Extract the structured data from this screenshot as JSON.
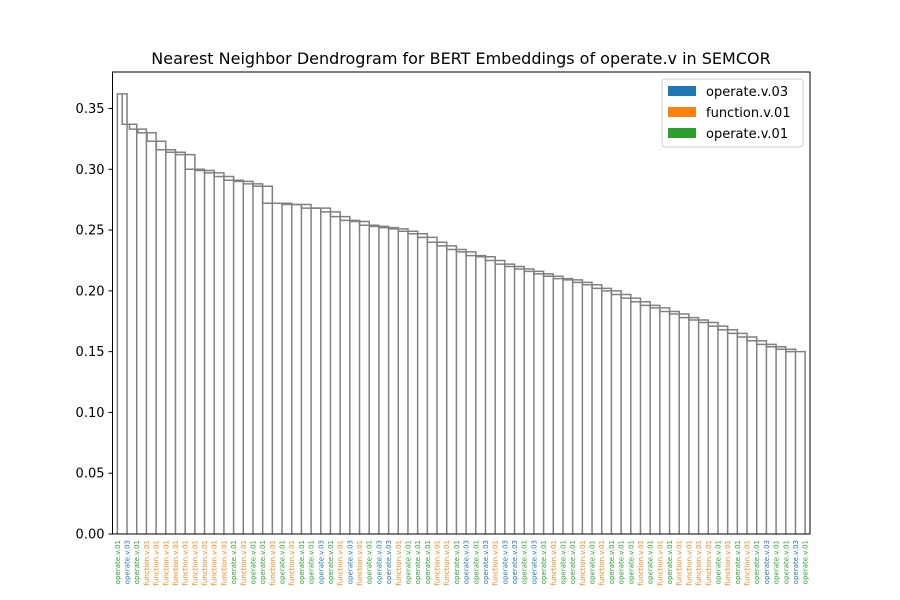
{
  "chart_data": {
    "type": "dendrogram",
    "title": "Nearest Neighbor Dendrogram for BERT Embeddings of operate.v in SEMCOR",
    "xlabel": "",
    "ylabel": "",
    "ylim": [
      0,
      0.38
    ],
    "yticks": [
      "0.00",
      "0.05",
      "0.10",
      "0.15",
      "0.20",
      "0.25",
      "0.30",
      "0.35"
    ],
    "grid": false,
    "legend_position": "top-right",
    "legend": [
      {
        "label": "operate.v.03",
        "color": "#1f77b4"
      },
      {
        "label": "function.v.01",
        "color": "#ff7f0e"
      },
      {
        "label": "operate.v.01",
        "color": "#2ca02c"
      }
    ],
    "link_color": "#808080",
    "sense_colors": {
      "operate.v.03": "#1f77b4",
      "function.v.01": "#ff7f0e",
      "operate.v.01": "#2ca02c"
    },
    "leaves": [
      "operate.v.01",
      "operate.v.03",
      "operate.v.01",
      "function.v.01",
      "function.v.01",
      "function.v.01",
      "function.v.01",
      "function.v.01",
      "function.v.01",
      "function.v.01",
      "function.v.01",
      "function.v.01",
      "operate.v.01",
      "function.v.01",
      "operate.v.01",
      "operate.v.01",
      "function.v.01",
      "operate.v.01",
      "function.v.01",
      "operate.v.01",
      "operate.v.01",
      "operate.v.03",
      "operate.v.01",
      "function.v.01",
      "operate.v.03",
      "function.v.01",
      "operate.v.01",
      "operate.v.03",
      "operate.v.03",
      "function.v.01",
      "operate.v.01",
      "operate.v.01",
      "operate.v.01",
      "function.v.01",
      "function.v.01",
      "operate.v.01",
      "operate.v.03",
      "operate.v.01",
      "operate.v.03",
      "function.v.01",
      "operate.v.03",
      "operate.v.03",
      "operate.v.01",
      "operate.v.03",
      "operate.v.01",
      "function.v.01",
      "operate.v.01",
      "operate.v.01",
      "function.v.01",
      "operate.v.01",
      "function.v.01",
      "operate.v.01",
      "operate.v.01",
      "operate.v.01",
      "function.v.01",
      "operate.v.01",
      "function.v.01",
      "operate.v.01",
      "function.v.01",
      "function.v.01",
      "function.v.01",
      "function.v.01",
      "operate.v.01",
      "function.v.01",
      "operate.v.01",
      "function.v.01",
      "operate.v.01",
      "operate.v.03",
      "operate.v.01",
      "operate.v.01",
      "operate.v.03",
      "operate.v.01"
    ],
    "merges": [
      {
        "a": "L1",
        "b": "L2",
        "h": 0.362
      },
      {
        "a": "L3",
        "b": "M1",
        "h": 0.337
      },
      {
        "a": "L4",
        "b": "M2",
        "h": 0.333
      },
      {
        "a": "L5",
        "b": "M3",
        "h": 0.33
      },
      {
        "a": "L6",
        "b": "M4",
        "h": 0.323
      },
      {
        "a": "L7",
        "b": "M5",
        "h": 0.316
      },
      {
        "a": "L8",
        "b": "M6",
        "h": 0.314
      },
      {
        "a": "L9",
        "b": "M7",
        "h": 0.312
      },
      {
        "a": "L10",
        "b": "M8",
        "h": 0.3
      },
      {
        "a": "L11",
        "b": "M9",
        "h": 0.299
      },
      {
        "a": "L12",
        "b": "M10",
        "h": 0.297
      },
      {
        "a": "L13",
        "b": "M11",
        "h": 0.294
      },
      {
        "a": "L14",
        "b": "M12",
        "h": 0.291
      },
      {
        "a": "L15",
        "b": "M13",
        "h": 0.29
      },
      {
        "a": "L16",
        "b": "M14",
        "h": 0.288
      },
      {
        "a": "L17",
        "b": "M15",
        "h": 0.286
      },
      {
        "a": "L18",
        "b": "M16",
        "h": 0.272
      },
      {
        "a": "L19",
        "b": "M17",
        "h": 0.272
      },
      {
        "a": "L20",
        "b": "M18",
        "h": 0.271
      },
      {
        "a": "L21",
        "b": "M19",
        "h": 0.271
      },
      {
        "a": "L22",
        "b": "M20",
        "h": 0.268
      },
      {
        "a": "L23",
        "b": "M21",
        "h": 0.268
      },
      {
        "a": "L24",
        "b": "M22",
        "h": 0.265
      },
      {
        "a": "L25",
        "b": "M23",
        "h": 0.261
      },
      {
        "a": "L26",
        "b": "M24",
        "h": 0.258
      },
      {
        "a": "L27",
        "b": "M25",
        "h": 0.257
      },
      {
        "a": "L28",
        "b": "M26",
        "h": 0.254
      },
      {
        "a": "L29",
        "b": "M27",
        "h": 0.253
      },
      {
        "a": "L30",
        "b": "M28",
        "h": 0.252
      },
      {
        "a": "L31",
        "b": "M29",
        "h": 0.251
      },
      {
        "a": "L32",
        "b": "M30",
        "h": 0.249
      },
      {
        "a": "L33",
        "b": "M31",
        "h": 0.247
      },
      {
        "a": "L34",
        "b": "M32",
        "h": 0.244
      },
      {
        "a": "L35",
        "b": "M33",
        "h": 0.24
      },
      {
        "a": "L36",
        "b": "M34",
        "h": 0.237
      },
      {
        "a": "L37",
        "b": "M35",
        "h": 0.234
      },
      {
        "a": "L38",
        "b": "M36",
        "h": 0.232
      },
      {
        "a": "L39",
        "b": "M37",
        "h": 0.229
      },
      {
        "a": "L40",
        "b": "M38",
        "h": 0.228
      },
      {
        "a": "L41",
        "b": "M39",
        "h": 0.225
      },
      {
        "a": "L42",
        "b": "M40",
        "h": 0.222
      },
      {
        "a": "L43",
        "b": "M41",
        "h": 0.22
      },
      {
        "a": "L44",
        "b": "M42",
        "h": 0.218
      },
      {
        "a": "L45",
        "b": "M43",
        "h": 0.216
      },
      {
        "a": "L46",
        "b": "M44",
        "h": 0.214
      },
      {
        "a": "L47",
        "b": "M45",
        "h": 0.212
      },
      {
        "a": "L48",
        "b": "M46",
        "h": 0.21
      },
      {
        "a": "L49",
        "b": "M47",
        "h": 0.209
      },
      {
        "a": "L50",
        "b": "M48",
        "h": 0.207
      },
      {
        "a": "L51",
        "b": "M49",
        "h": 0.205
      },
      {
        "a": "L52",
        "b": "M50",
        "h": 0.202
      },
      {
        "a": "L53",
        "b": "M51",
        "h": 0.2
      },
      {
        "a": "L54",
        "b": "M52",
        "h": 0.197
      },
      {
        "a": "L55",
        "b": "M53",
        "h": 0.194
      },
      {
        "a": "L56",
        "b": "M54",
        "h": 0.191
      },
      {
        "a": "L57",
        "b": "M55",
        "h": 0.188
      },
      {
        "a": "L58",
        "b": "M56",
        "h": 0.186
      },
      {
        "a": "L59",
        "b": "M57",
        "h": 0.183
      },
      {
        "a": "L60",
        "b": "M58",
        "h": 0.181
      },
      {
        "a": "L61",
        "b": "M59",
        "h": 0.178
      },
      {
        "a": "L62",
        "b": "M60",
        "h": 0.176
      },
      {
        "a": "L63",
        "b": "M61",
        "h": 0.174
      },
      {
        "a": "L64",
        "b": "M62",
        "h": 0.171
      },
      {
        "a": "L65",
        "b": "M63",
        "h": 0.168
      },
      {
        "a": "L66",
        "b": "M64",
        "h": 0.165
      },
      {
        "a": "L67",
        "b": "M65",
        "h": 0.162
      },
      {
        "a": "L68",
        "b": "M66",
        "h": 0.159
      },
      {
        "a": "L69",
        "b": "M67",
        "h": 0.156
      },
      {
        "a": "L70",
        "b": "M68",
        "h": 0.154
      },
      {
        "a": "L71",
        "b": "M69",
        "h": 0.152
      },
      {
        "a": "L72",
        "b": "M70",
        "h": 0.15
      }
    ]
  }
}
